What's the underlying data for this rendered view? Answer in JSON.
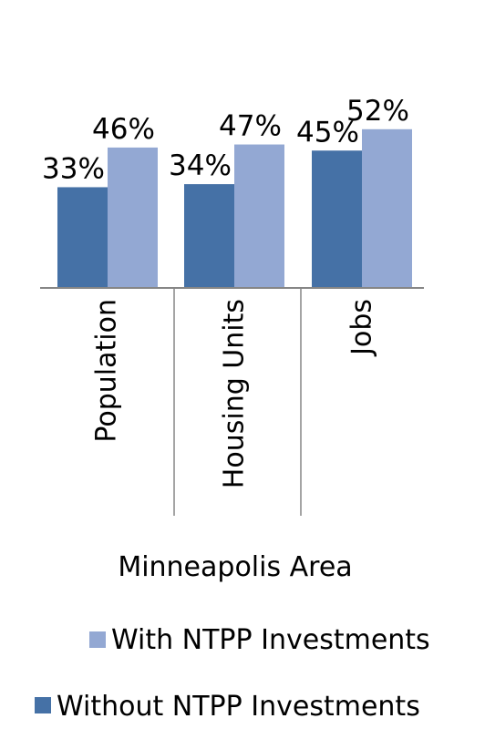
{
  "chart_data": {
    "type": "bar",
    "xlabel": "Minneapolis Area",
    "categories": [
      "Population",
      "Housing Units",
      "Jobs"
    ],
    "series": [
      {
        "name": "Without NTPP Investments",
        "color": "#4571a6",
        "values": [
          33,
          34,
          45
        ],
        "labels": [
          "33%",
          "34%",
          "45%"
        ]
      },
      {
        "name": "With NTPP Investments",
        "color": "#93a8d3",
        "values": [
          46,
          47,
          52
        ],
        "labels": [
          "46%",
          "47%",
          "52%"
        ]
      }
    ],
    "ylim": [
      0,
      60
    ],
    "grid": false,
    "legend": "bottom",
    "legend_order": [
      "With NTPP Investments",
      "Without NTPP Investments"
    ]
  }
}
